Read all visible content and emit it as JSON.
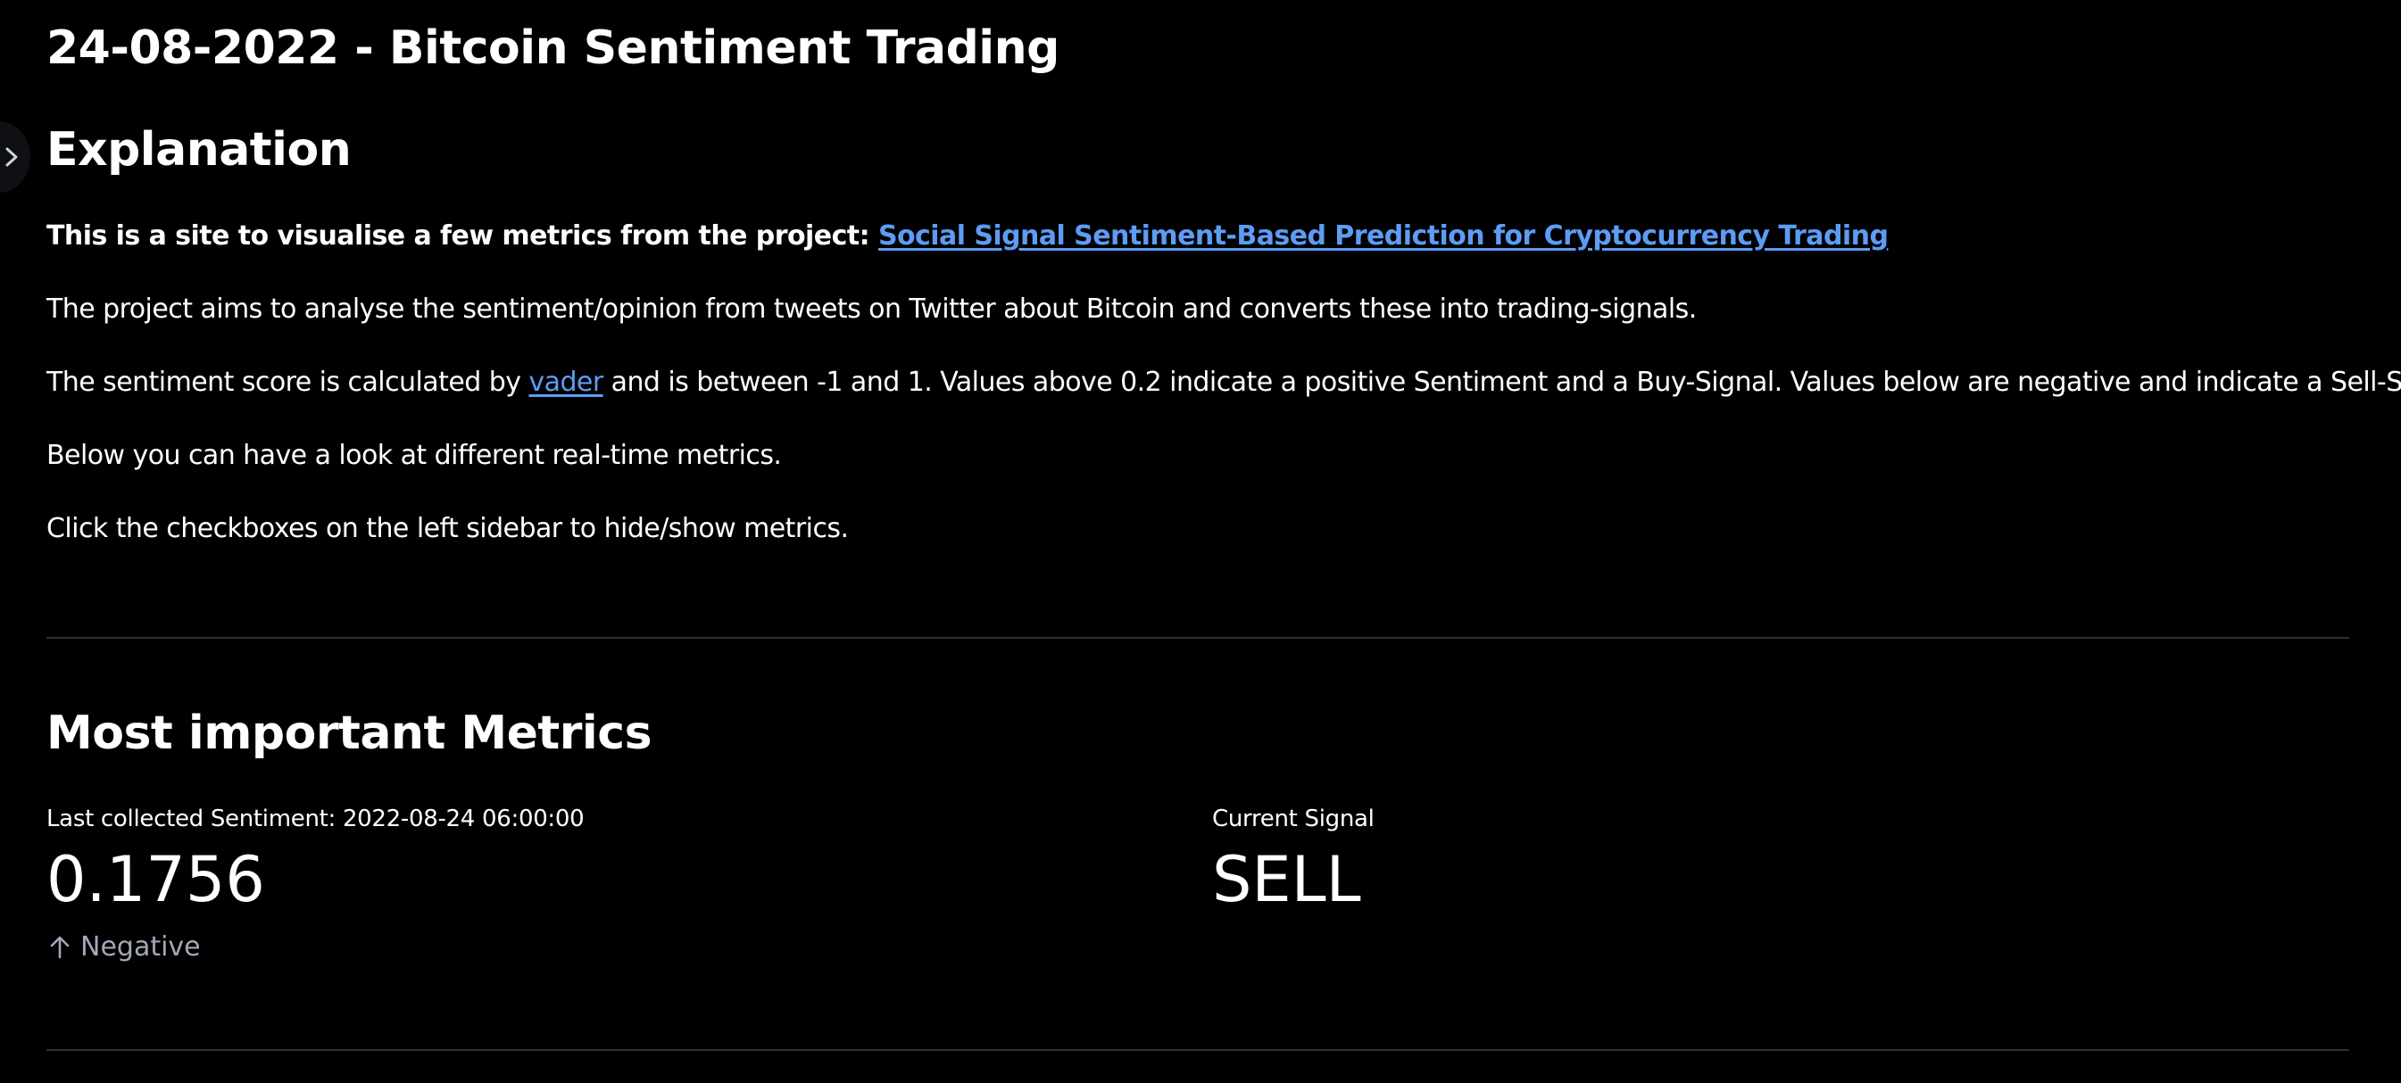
{
  "title": "24-08-2022 - Bitcoin Sentiment Trading",
  "explanation": {
    "heading": "Explanation",
    "intro_text": "This is a site to visualise a few metrics from the project: ",
    "project_link": "Social Signal Sentiment-Based Prediction for Cryptocurrency Trading",
    "aim": "The project aims to analyse the sentiment/opinion from tweets on Twitter about Bitcoin and converts these into trading-signals.",
    "score_prefix": "The sentiment score is calculated by ",
    "vader_link": "vader",
    "score_suffix": " and is between -1 and 1. Values above 0.2 indicate a positive Sentiment and a Buy-Signal. Values below are negative and indicate a Sell-Signal.",
    "realtime": "Below you can have a look at different real-time metrics.",
    "checkbox_hint": "Click the checkboxes on the left sidebar to hide/show metrics."
  },
  "metrics": {
    "heading": "Most important Metrics",
    "sentiment": {
      "label": "Last collected Sentiment: 2022-08-24 06:00:00",
      "value": "0.1756",
      "delta": "Negative",
      "delta_icon": "arrow-up-icon"
    },
    "signal": {
      "label": "Current Signal",
      "value": "SELL"
    }
  },
  "colors": {
    "background": "#000000",
    "text": "#ffffff",
    "link": "#5d9cf5",
    "delta": "#a3a8b8",
    "divider": "#2e3038"
  }
}
